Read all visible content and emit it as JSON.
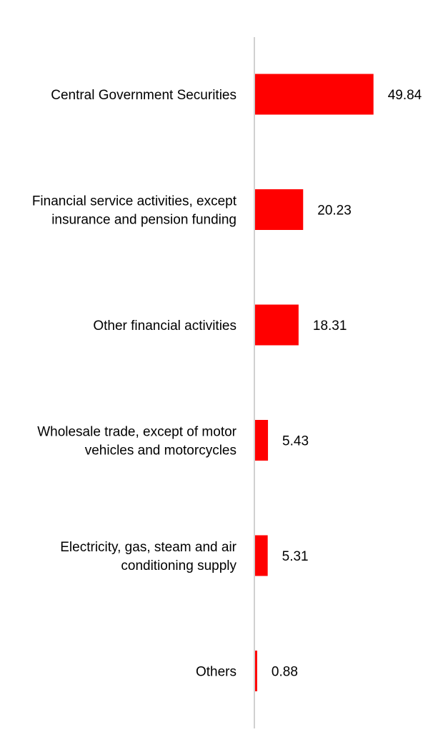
{
  "chart_data": {
    "type": "bar",
    "orientation": "horizontal",
    "categories": [
      [
        "Central Government Securities"
      ],
      [
        "Financial service activities, except",
        "insurance and pension funding"
      ],
      [
        "Other financial activities"
      ],
      [
        "Wholesale trade, except of motor",
        "vehicles and motorcycles"
      ],
      [
        "Electricity, gas, steam and air",
        "conditioning supply"
      ],
      [
        "Others"
      ]
    ],
    "values": [
      49.84,
      20.23,
      18.31,
      5.43,
      5.31,
      0.88
    ],
    "value_labels": [
      "49.84",
      "20.23",
      "18.31",
      "5.43",
      "5.31",
      "0.88"
    ],
    "title": "",
    "xlabel": "",
    "ylabel": "",
    "xlim": [
      0,
      60
    ],
    "grid": false,
    "legend": "none",
    "colors": {
      "bar": "#ff0000",
      "axis": "#d0d0d0",
      "text": "#000000"
    }
  }
}
